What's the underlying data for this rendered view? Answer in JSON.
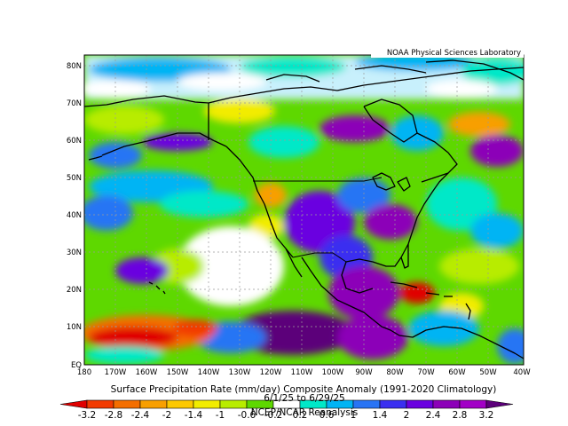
{
  "map": {
    "credit": "NOAA Physical Sciences Laboratory",
    "title": "Surface Precipitation Rate (mm/day) Composite Anomaly (1991-2020 Climatology)",
    "date_range": "6/1/25 to 6/29/25",
    "source": "NCEP/NCAR Reanalysis",
    "lat_labels": [
      "80N",
      "70N",
      "60N",
      "50N",
      "40N",
      "30N",
      "20N",
      "10N",
      "EQ"
    ],
    "lon_labels": [
      "180",
      "170W",
      "160W",
      "150W",
      "140W",
      "130W",
      "120W",
      "110W",
      "100W",
      "90W",
      "80W",
      "70W",
      "60W",
      "50W",
      "40W"
    ],
    "colorbar": {
      "ticks": [
        "-3.2",
        "-2.8",
        "-2.4",
        "-2",
        "-1.4",
        "-1",
        "-0.6",
        "-0.2",
        "0.2",
        "0.6",
        "1",
        "1.4",
        "2",
        "2.4",
        "2.8",
        "3.2"
      ],
      "colors": [
        "#e00000",
        "#f23a00",
        "#f46e00",
        "#f89f00",
        "#fcc800",
        "#f2ec00",
        "#b8ec00",
        "#5ed800",
        "#ffffff",
        "#00e8c8",
        "#00b4f4",
        "#2874f4",
        "#3a2ff0",
        "#6a00e0",
        "#8c00b8",
        "#a200c6",
        "#5c007a"
      ]
    },
    "colors": {
      "background": "#ffffff",
      "coast": "#000000",
      "grid": "#9a9a9a"
    }
  }
}
